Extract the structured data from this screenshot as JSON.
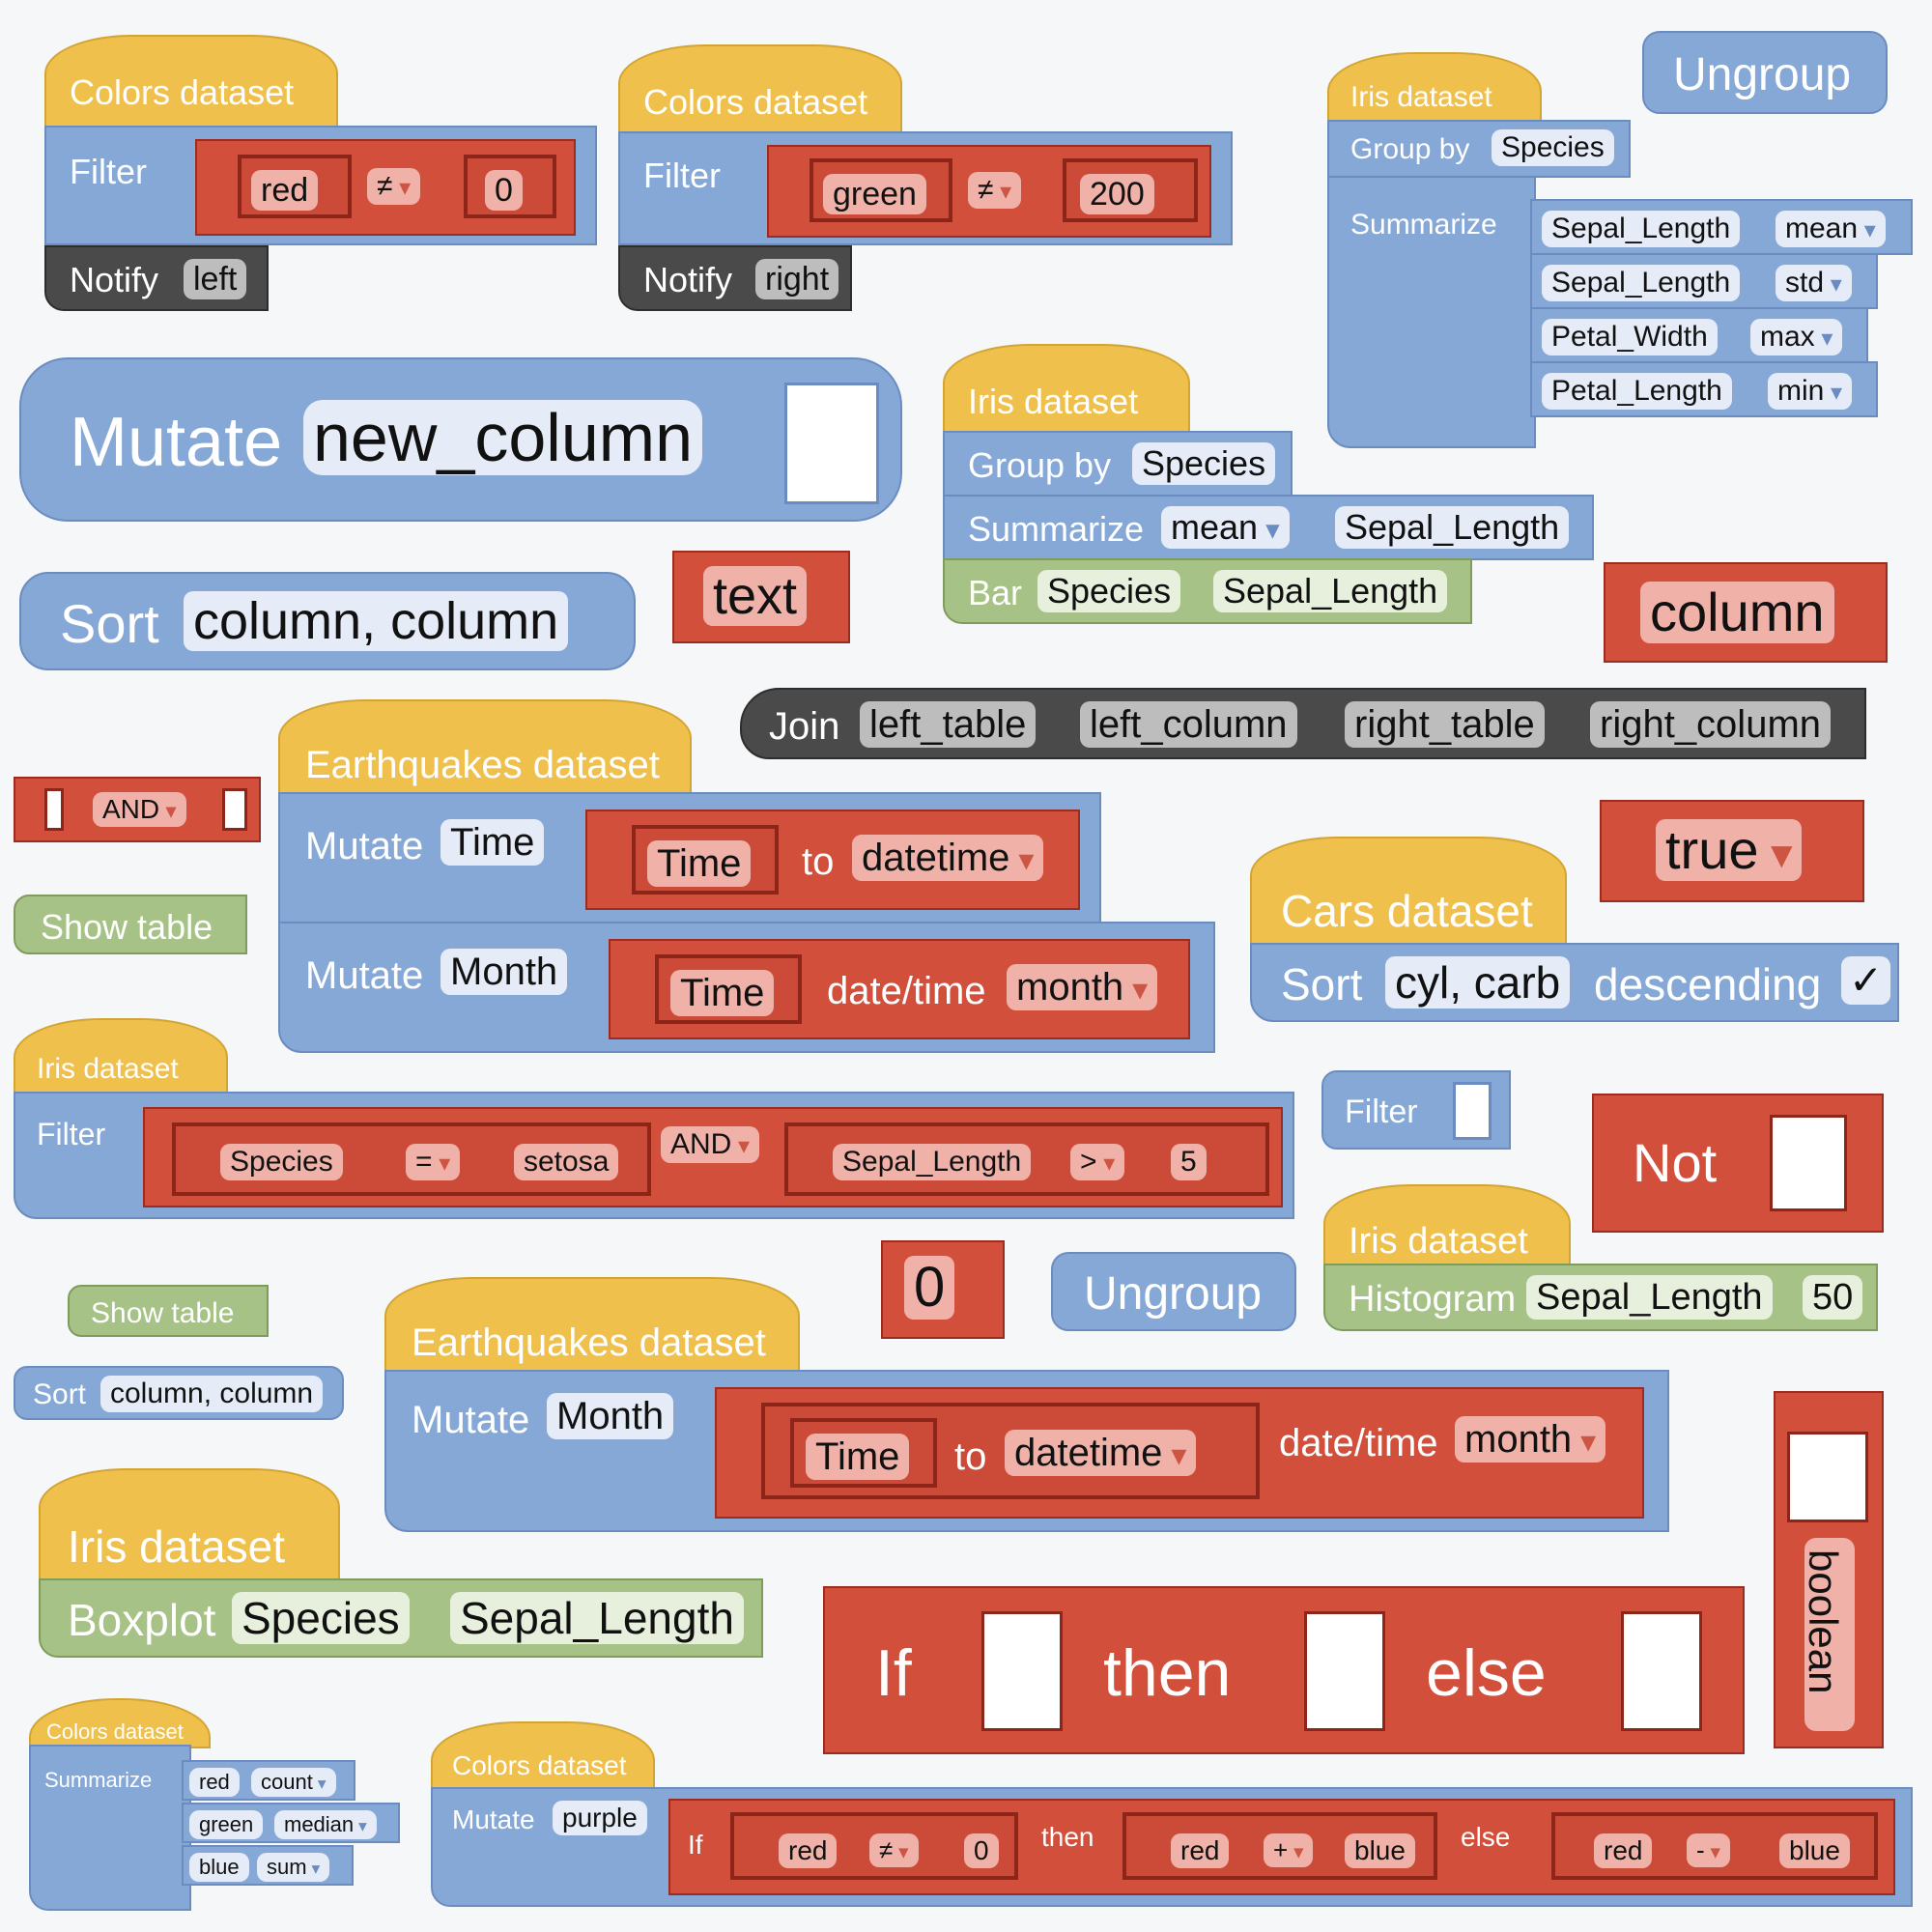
{
  "blocks": {
    "colors1": {
      "dataset": "Colors dataset",
      "filter": "Filter",
      "field": "red",
      "op": "≠",
      "value": "0",
      "notify": "Notify",
      "side": "left"
    },
    "colors2": {
      "dataset": "Colors dataset",
      "filter": "Filter",
      "field": "green",
      "op": "≠",
      "value": "200",
      "notify": "Notify",
      "side": "right"
    },
    "iris1": {
      "dataset": "Iris dataset",
      "group_by": "Group by",
      "group_field": "Species",
      "summarize": "Summarize",
      "rows": [
        {
          "field": "Sepal_Length",
          "fn": "mean"
        },
        {
          "field": "Sepal_Length",
          "fn": "std"
        },
        {
          "field": "Petal_Width",
          "fn": "max"
        },
        {
          "field": "Petal_Length",
          "fn": "min"
        }
      ]
    },
    "ungroup1": "Ungroup",
    "mutate_big": {
      "label": "Mutate",
      "column": "new_column"
    },
    "iris2": {
      "dataset": "Iris dataset",
      "group_by": "Group by",
      "group_field": "Species",
      "summarize": "Summarize",
      "fn": "mean",
      "field": "Sepal_Length",
      "bar": "Bar",
      "bar_x": "Species",
      "bar_y": "Sepal_Length"
    },
    "sort_big": {
      "label": "Sort",
      "columns": "column, column"
    },
    "text_block": "text",
    "column_block": "column",
    "join": {
      "label": "Join",
      "a": "left_table",
      "b": "left_column",
      "c": "right_table",
      "d": "right_column"
    },
    "and_block": "AND",
    "show_table1": "Show table",
    "earthquakes1": {
      "dataset": "Earthquakes dataset",
      "mutate": "Mutate",
      "col1": "Time",
      "time": "Time",
      "to": "to",
      "datetime": "datetime",
      "col2": "Month",
      "datetime_label": "date/time",
      "month": "month"
    },
    "true_block": "true",
    "cars": {
      "dataset": "Cars dataset",
      "sort": "Sort",
      "cols": "cyl, carb",
      "descending": "descending",
      "check": "✓"
    },
    "iris3": {
      "dataset": "Iris dataset",
      "filter": "Filter",
      "species": "Species",
      "eq": "=",
      "setosa": "setosa",
      "and": "AND",
      "sepal": "Sepal_Length",
      "gt": ">",
      "five": "5"
    },
    "filter_small": "Filter",
    "not_block": "Not",
    "zero_block": "0",
    "ungroup2": "Ungroup",
    "iris4": {
      "dataset": "Iris dataset",
      "histogram": "Histogram",
      "field": "Sepal_Length",
      "bins": "50"
    },
    "show_table2": "Show table",
    "sort_small": {
      "label": "Sort",
      "columns": "column, column"
    },
    "earthquakes2": {
      "dataset": "Earthquakes dataset",
      "mutate": "Mutate",
      "col": "Month",
      "time": "Time",
      "to": "to",
      "datetime": "datetime",
      "datetime_label": "date/time",
      "month": "month"
    },
    "iris5": {
      "dataset": "Iris dataset",
      "boxplot": "Boxplot",
      "x": "Species",
      "y": "Sepal_Length"
    },
    "ifthen": {
      "if": "If",
      "then": "then",
      "else": "else"
    },
    "boolean": "boolean",
    "colors3": {
      "dataset": "Colors dataset",
      "summarize": "Summarize",
      "rows": [
        {
          "field": "red",
          "fn": "count"
        },
        {
          "field": "green",
          "fn": "median"
        },
        {
          "field": "blue",
          "fn": "sum"
        }
      ]
    },
    "colors4": {
      "dataset": "Colors dataset",
      "mutate": "Mutate",
      "col": "purple",
      "if": "If",
      "red1": "red",
      "neq": "≠",
      "zero": "0",
      "then": "then",
      "red2": "red",
      "plus": "+",
      "blue1": "blue",
      "else": "else",
      "red3": "red",
      "minus": "-",
      "blue2": "blue"
    }
  },
  "colors": {
    "blue": "#86a8d7",
    "yellow": "#f0c04c",
    "red": "#d24f3c",
    "green": "#a7c286",
    "dark": "#4a4a4a"
  }
}
